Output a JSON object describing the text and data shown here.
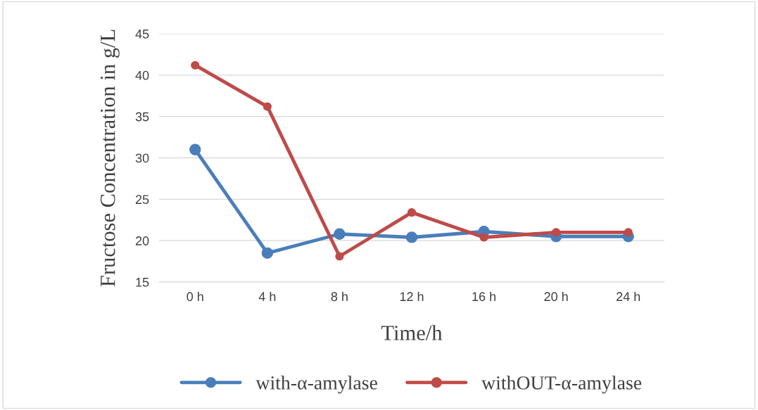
{
  "chart_data": {
    "type": "line",
    "xlabel": "Time/h",
    "ylabel": "Fructose Concentration in g/L",
    "categories": [
      "0 h",
      "4 h",
      "8 h",
      "12 h",
      "16 h",
      "20 h",
      "24 h"
    ],
    "series": [
      {
        "name": "with-α-amylase",
        "color": "#4a7ebb",
        "values": [
          31.0,
          18.5,
          20.8,
          20.4,
          21.1,
          20.5,
          20.5
        ]
      },
      {
        "name": "withOUT-α-amylase",
        "color": "#be4b48",
        "values": [
          41.2,
          36.2,
          18.1,
          23.4,
          20.4,
          21.0,
          21.0
        ]
      }
    ],
    "ylim": [
      15,
      45
    ],
    "yticks": [
      15,
      20,
      25,
      30,
      35,
      40,
      45
    ],
    "grid": "y",
    "legend": "bottom",
    "marker": "circle",
    "line_style": "solid"
  }
}
